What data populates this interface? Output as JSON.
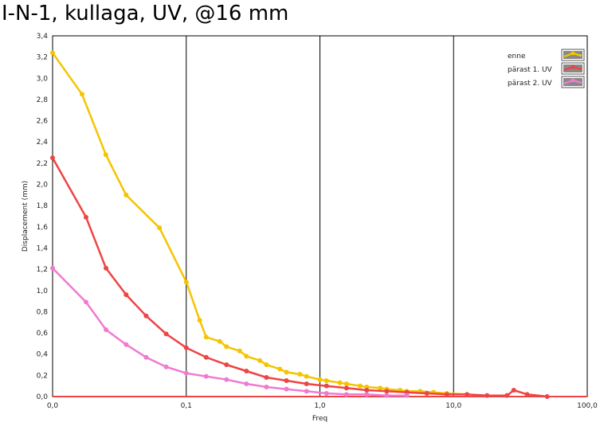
{
  "chart_data": {
    "type": "line",
    "title": "I-N-1, kullaga, UV, @16 mm",
    "xlabel": "Freq",
    "ylabel": "Displacement (mm)",
    "x_scale": "log",
    "xlim": [
      0.01,
      100
    ],
    "ylim": [
      0,
      3.4
    ],
    "x_tick_values": [
      0.01,
      0.1,
      1,
      10,
      100
    ],
    "x_tick_labels": [
      "0,0",
      "0,1",
      "1,0",
      "10,0",
      "100,0"
    ],
    "y_tick_values": [
      0,
      0.2,
      0.4,
      0.6,
      0.8,
      1.0,
      1.2,
      1.4,
      1.6,
      1.8,
      2.0,
      2.2,
      2.4,
      2.6,
      2.8,
      3.0,
      3.2,
      3.4
    ],
    "y_tick_labels": [
      "0,0",
      "0,2",
      "0,4",
      "0,6",
      "0,8",
      "1,0",
      "1,2",
      "1,4",
      "1,6",
      "1,8",
      "2,0",
      "2,2",
      "2,4",
      "2,6",
      "2,8",
      "3,0",
      "3,2",
      "3,4"
    ],
    "grid": true,
    "legend_position": "top-right",
    "series": [
      {
        "name": "enne",
        "color": "#f5c400",
        "x": [
          0.01,
          0.0166,
          0.025,
          0.0355,
          0.0631,
          0.1,
          0.126,
          0.141,
          0.178,
          0.2,
          0.251,
          0.282,
          0.355,
          0.398,
          0.501,
          0.562,
          0.708,
          0.794,
          1.0,
          1.12,
          1.41,
          1.58,
          2.0,
          2.24,
          2.82,
          3.16,
          3.98,
          4.47,
          5.62,
          7.08,
          8.91,
          12.6
        ],
        "values": [
          3.24,
          2.85,
          2.28,
          1.9,
          1.59,
          1.08,
          0.72,
          0.56,
          0.52,
          0.47,
          0.43,
          0.38,
          0.34,
          0.3,
          0.26,
          0.23,
          0.21,
          0.19,
          0.16,
          0.15,
          0.13,
          0.12,
          0.1,
          0.09,
          0.08,
          0.07,
          0.06,
          0.05,
          0.05,
          0.04,
          0.03,
          0.02
        ]
      },
      {
        "name": "pärast 1. UV",
        "color": "#ee4444",
        "x": [
          0.01,
          0.0178,
          0.0251,
          0.0355,
          0.0501,
          0.0708,
          0.1,
          0.141,
          0.2,
          0.282,
          0.398,
          0.562,
          0.794,
          1.12,
          1.58,
          2.24,
          3.16,
          4.47,
          6.31,
          8.91,
          12.6,
          17.8,
          25.1,
          28.2,
          35.5,
          50.1
        ],
        "values": [
          2.25,
          1.69,
          1.21,
          0.96,
          0.76,
          0.59,
          0.46,
          0.37,
          0.3,
          0.24,
          0.18,
          0.15,
          0.12,
          0.1,
          0.08,
          0.06,
          0.05,
          0.04,
          0.03,
          0.02,
          0.02,
          0.01,
          0.01,
          0.06,
          0.02,
          0.0
        ]
      },
      {
        "name": "pärast 2. UV",
        "color": "#f07ad0",
        "x": [
          0.01,
          0.0178,
          0.0251,
          0.0355,
          0.0501,
          0.0708,
          0.1,
          0.141,
          0.2,
          0.282,
          0.398,
          0.562,
          0.794,
          1.12,
          1.58,
          2.24,
          3.16,
          4.47
        ],
        "values": [
          1.21,
          0.89,
          0.63,
          0.49,
          0.37,
          0.28,
          0.22,
          0.19,
          0.16,
          0.12,
          0.09,
          0.07,
          0.05,
          0.03,
          0.02,
          0.02,
          0.01,
          0.01
        ]
      }
    ]
  }
}
